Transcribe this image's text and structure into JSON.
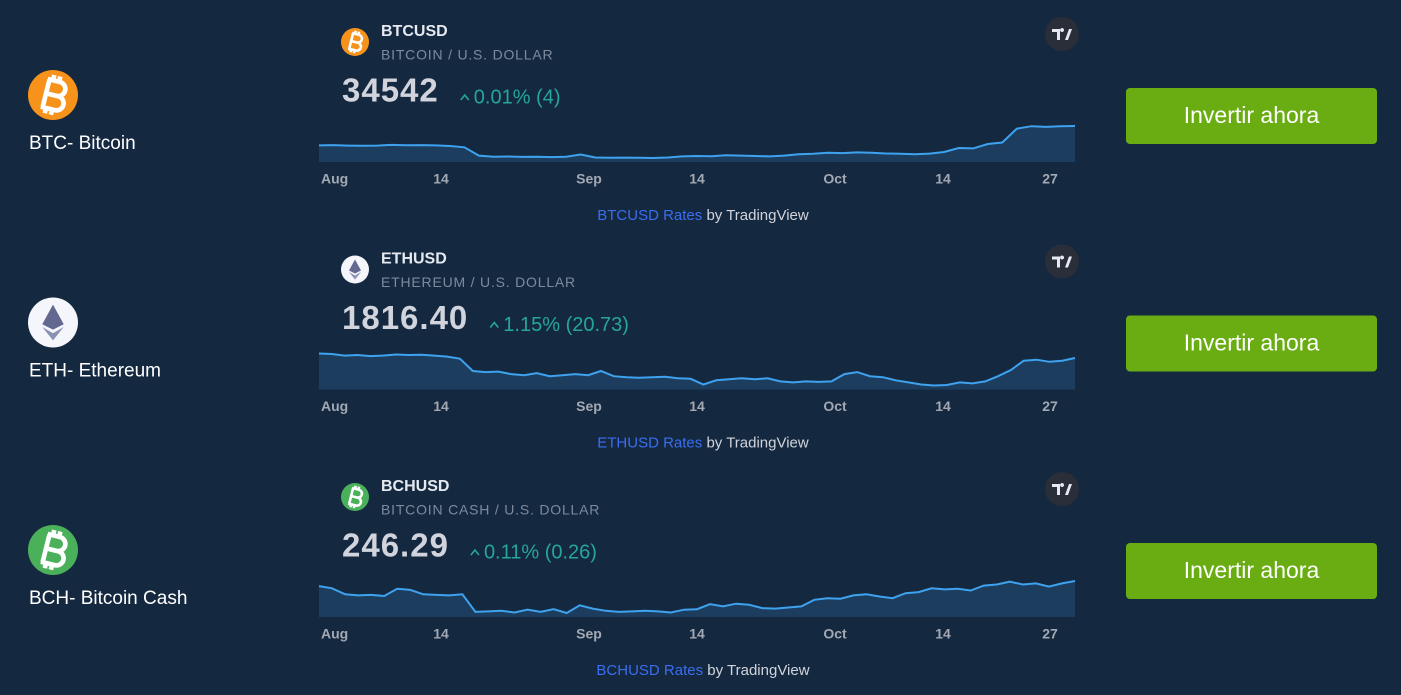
{
  "rows": [
    {
      "name": "BTC- Bitcoin",
      "symbol": "BTCUSD",
      "description": "BITCOIN / U.S. DOLLAR",
      "price": "34542",
      "change": "0.01% (4)",
      "axis_labels": [
        "Aug",
        "14",
        "Sep",
        "14",
        "Oct",
        "14",
        "27"
      ],
      "link": "BTCUSD Rates",
      "by": "by TradingView",
      "button": "Invertir ahora",
      "series": [
        29200,
        29300,
        29150,
        29100,
        29150,
        29350,
        29250,
        29300,
        29200,
        29050,
        28700,
        26400,
        26100,
        26150,
        26050,
        26100,
        26000,
        26100,
        26700,
        25900,
        25800,
        25850,
        25800,
        25750,
        25900,
        26200,
        26300,
        26250,
        26500,
        26400,
        26300,
        26200,
        26400,
        26800,
        26900,
        27200,
        27100,
        27300,
        27200,
        27000,
        26900,
        26800,
        26950,
        27400,
        28500,
        28400,
        29600,
        30000,
        33800,
        34500,
        34300,
        34450,
        34542
      ]
    },
    {
      "name": "ETH- Ethereum",
      "symbol": "ETHUSD",
      "description": "ETHEREUM / U.S. DOLLAR",
      "price": "1816.40",
      "change": "1.15% (20.73)",
      "axis_labels": [
        "Aug",
        "14",
        "Sep",
        "14",
        "Oct",
        "14",
        "27"
      ],
      "link": "ETHUSD Rates",
      "by": "by TradingView",
      "button": "Invertir ahora",
      "series": [
        1860,
        1855,
        1840,
        1845,
        1835,
        1840,
        1850,
        1845,
        1848,
        1840,
        1830,
        1810,
        1690,
        1680,
        1685,
        1660,
        1650,
        1670,
        1640,
        1650,
        1660,
        1650,
        1690,
        1640,
        1630,
        1625,
        1630,
        1635,
        1620,
        1615,
        1560,
        1600,
        1610,
        1620,
        1610,
        1620,
        1590,
        1580,
        1590,
        1585,
        1590,
        1660,
        1680,
        1640,
        1630,
        1600,
        1580,
        1560,
        1550,
        1555,
        1580,
        1570,
        1590,
        1640,
        1700,
        1790,
        1800,
        1780,
        1790,
        1816.4
      ]
    },
    {
      "name": "BCH- Bitcoin Cash",
      "symbol": "BCHUSD",
      "description": "BITCOIN CASH / U.S. DOLLAR",
      "price": "246.29",
      "change": "0.11% (0.26)",
      "axis_labels": [
        "Aug",
        "14",
        "Sep",
        "14",
        "Oct",
        "14",
        "27"
      ],
      "link": "BCHUSD Rates",
      "by": "by TradingView",
      "button": "Invertir ahora",
      "series": [
        237,
        233,
        222,
        220,
        221,
        219,
        232,
        230,
        222,
        221,
        220,
        222,
        190,
        191,
        192,
        189,
        194,
        190,
        195,
        188,
        202,
        196,
        192,
        190,
        191,
        192,
        191,
        189,
        194,
        195,
        204,
        200,
        205,
        203,
        197,
        196,
        198,
        200,
        212,
        215,
        214,
        220,
        222,
        218,
        215,
        224,
        226,
        233,
        231,
        232,
        229,
        238,
        240,
        245,
        240,
        242,
        236,
        242,
        246.29
      ]
    }
  ]
}
